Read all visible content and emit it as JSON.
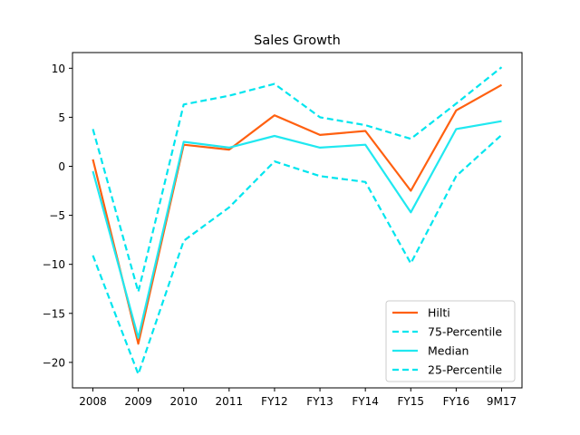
{
  "chart_data": {
    "type": "line",
    "title": "Sales Growth",
    "xlabel": "",
    "ylabel": "",
    "categories": [
      "2008",
      "2009",
      "2010",
      "2011",
      "FY12",
      "FY13",
      "FY14",
      "FY15",
      "FY16",
      "9M17"
    ],
    "ylim": [
      -22.6,
      11.6
    ],
    "yticks": [
      10,
      5,
      0,
      -5,
      -10,
      -15,
      -20
    ],
    "ytick_labels": [
      "10",
      "5",
      "0",
      "−5",
      "−10",
      "−15",
      "−20"
    ],
    "grid": false,
    "legend_position": "lower-right",
    "series": [
      {
        "name": "Hilti",
        "color": "#ff6010",
        "style": "solid",
        "values": [
          0.7,
          -18.1,
          2.2,
          1.7,
          5.2,
          3.2,
          3.6,
          -2.5,
          5.7,
          8.3
        ]
      },
      {
        "name": "75-Percentile",
        "color": "#00e5ee",
        "style": "dashed",
        "values": [
          3.8,
          -12.8,
          6.3,
          7.2,
          8.4,
          5.0,
          4.2,
          2.8,
          6.4,
          10.1
        ]
      },
      {
        "name": "Median",
        "color": "#20e8f0",
        "style": "solid",
        "values": [
          -0.5,
          -17.5,
          2.5,
          1.9,
          3.1,
          1.9,
          2.2,
          -4.7,
          3.8,
          4.6
        ]
      },
      {
        "name": "25-Percentile",
        "color": "#00e5ee",
        "style": "dashed",
        "values": [
          -9.1,
          -21.2,
          -7.6,
          -4.2,
          0.5,
          -1.0,
          -1.6,
          -9.9,
          -1.0,
          3.2
        ]
      }
    ]
  }
}
